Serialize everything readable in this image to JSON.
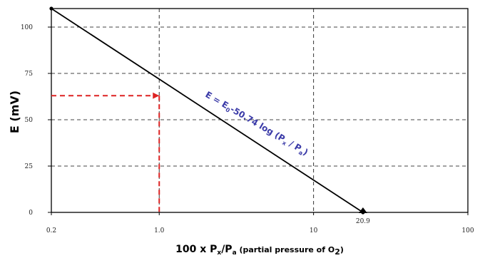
{
  "chart_data": {
    "type": "line",
    "x_scale": "log",
    "xlim": [
      0.2,
      100
    ],
    "ylim": [
      0,
      110
    ],
    "x_ticks": [
      0.2,
      1.0,
      10,
      100
    ],
    "x_tick_labels": [
      "0.2",
      "1.0",
      "10",
      "100"
    ],
    "y_ticks": [
      0,
      25,
      50,
      75,
      100
    ],
    "y_tick_labels": [
      "0",
      "25",
      "50",
      "75",
      "100"
    ],
    "ylabel": "E (mV)",
    "xlabel": {
      "main": "100 x P",
      "sub1": "x",
      "mid": "/P",
      "sub2": "a",
      "paren": " (partial pressure of O",
      "sub3": "2",
      "close": ")"
    },
    "grid": true,
    "series": [
      {
        "x": [
          0.2,
          20.9
        ],
        "y": [
          110,
          0
        ],
        "color": "#000000"
      }
    ],
    "reference": {
      "x": 1.0,
      "y": 63,
      "color": "#dd2222"
    },
    "annotations": {
      "end_point_label": {
        "text": "20.9",
        "x": 20.9,
        "color": "#cc2222"
      },
      "equation": {
        "prefix": "E = E",
        "sub0": "0",
        "mid": "-50.74 log (P",
        "subx": "x",
        "slash": " / P",
        "suba": "a",
        "close": ")",
        "color": "#3b3ba8"
      }
    }
  }
}
